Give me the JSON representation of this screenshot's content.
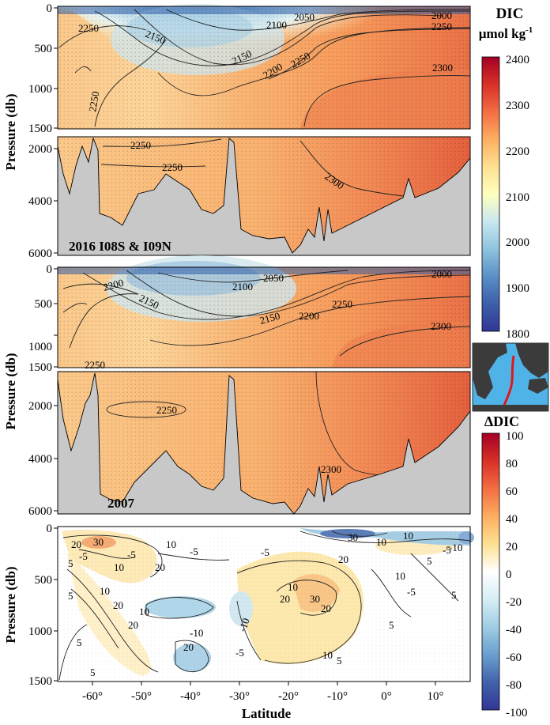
{
  "chart_data": [
    {
      "type": "heatmap",
      "name": "DIC section 2016",
      "annotation": "2016 I08S & I09N",
      "ylabel": "Pressure (db)",
      "upper_panel": {
        "ylim": [
          0,
          1500
        ],
        "yticks": [
          0,
          500,
          1000,
          1500
        ]
      },
      "lower_panel": {
        "ylim": [
          1500,
          6000
        ],
        "yticks": [
          2000,
          4000,
          6000
        ]
      },
      "xlim": [
        -66,
        18
      ],
      "contour_labels": [
        "2250",
        "2150",
        "2100",
        "2050",
        "2000",
        "2250",
        "2150",
        "2200",
        "2250",
        "2300",
        "2250",
        "2250",
        "2250",
        "2300"
      ]
    },
    {
      "type": "heatmap",
      "name": "DIC section 2007",
      "annotation": "2007",
      "ylabel": "Pressure (db)",
      "upper_panel": {
        "ylim": [
          0,
          1500
        ],
        "yticks": [
          0,
          500,
          1000,
          1500
        ]
      },
      "lower_panel": {
        "ylim": [
          1500,
          6000
        ],
        "yticks": [
          2000,
          4000,
          6000
        ]
      },
      "xlim": [
        -66,
        18
      ],
      "contour_labels": [
        "2200",
        "2150",
        "2100",
        "2050",
        "2000",
        "2250",
        "2150",
        "2200",
        "2250",
        "2300",
        "2250",
        "2300"
      ]
    },
    {
      "type": "heatmap",
      "name": "Delta DIC section",
      "xlabel": "Latitude",
      "ylabel": "Pressure (db)",
      "ylim": [
        0,
        1500
      ],
      "yticks": [
        0,
        500,
        1000,
        1500
      ],
      "xlim": [
        -66,
        18
      ],
      "xticks": [
        -60,
        -50,
        -40,
        -30,
        -20,
        -10,
        0,
        10
      ],
      "xticklabels": [
        "-60°",
        "-50°",
        "-40°",
        "-30°",
        "-20°",
        "-10°",
        "0°",
        "10°"
      ],
      "contour_labels": [
        "20",
        "30",
        "10",
        "5",
        "-5",
        "20",
        "10",
        "-5",
        "5",
        "10",
        "20",
        "10",
        "20",
        "5",
        "20",
        "-10",
        "5",
        "-5",
        "-10",
        "-5",
        "10",
        "20",
        "30",
        "20",
        "10",
        "5",
        "10",
        "-5",
        "5",
        "-5",
        "5",
        "30",
        "10",
        "20",
        "-10",
        "5",
        "10",
        "-5"
      ]
    }
  ],
  "colorbars": {
    "dic": {
      "title_line1": "DIC",
      "title_line2": "µmol kg",
      "title_sup": "-1",
      "range": [
        1800,
        2400
      ],
      "ticks": [
        "2400",
        "2300",
        "2200",
        "2100",
        "2000",
        "1900",
        "1800"
      ],
      "colors": [
        "#a50026",
        "#d73027",
        "#f46d43",
        "#fdae61",
        "#fee090",
        "#ffffbf",
        "#e0f3f8",
        "#abd9e9",
        "#74add1",
        "#4575b4",
        "#313695"
      ]
    },
    "delta": {
      "title": "ΔDIC",
      "range": [
        -100,
        100
      ],
      "ticks": [
        "100",
        "80",
        "60",
        "40",
        "20",
        "0",
        "-20",
        "-40",
        "-60",
        "-80",
        "-100"
      ],
      "colors": [
        "#a50026",
        "#d73027",
        "#f46d43",
        "#fdae61",
        "#fee090",
        "#ffffff",
        "#e0f3f8",
        "#abd9e9",
        "#74add1",
        "#4575b4",
        "#313695"
      ]
    }
  },
  "map_inset": {
    "ocean_color": "#4fb3e8",
    "land_color": "#3b3b3b",
    "track_color": "#e0181b"
  },
  "bathymetry_color": "#c8c8c8"
}
